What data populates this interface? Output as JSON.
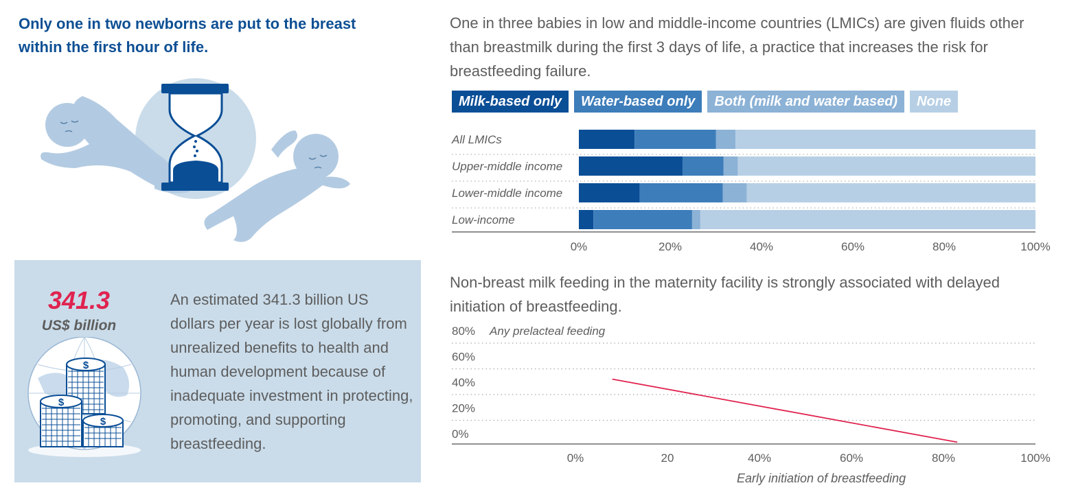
{
  "headline": "Only one in two newborns are put to the breast within the first hour of life.",
  "money": {
    "value": "341.3",
    "unit": "US$ billion",
    "text": "An estimated 341.3 billion US dollars per year is lost globally from unrealized benefits to health and human development because of inadequate investment in protecting, promoting, and supporting breastfeeding.",
    "dollar_sign": "$"
  },
  "intro1": "One in three babies in low and middle-income countries (LMICs) are given fluids other than breastmilk during the first 3 days of life, a practice that increases the risk for breastfeeding failure.",
  "intro2": "Non-breast milk feeding in the maternity facility is strongly associated with delayed initiation of breastfeeding.",
  "colors": {
    "navy": "#0a4e96",
    "mid_blue": "#3d7dba",
    "light_blue": "#8cb2d6",
    "pale_blue": "#b6cfe5",
    "red": "#e0234f",
    "heading_blue": "#0d4f93",
    "box_bg": "#cadcea"
  },
  "chart_data": [
    {
      "type": "bar",
      "orientation": "horizontal",
      "stacked": true,
      "title": "",
      "categories": [
        "All LMICs",
        "Upper-middle income",
        "Lower-middle income",
        "Low-income"
      ],
      "series": [
        {
          "name": "Milk-based only",
          "color": "#0a4e96",
          "values": [
            12.2,
            22.7,
            13.3,
            3.2
          ]
        },
        {
          "name": "Water-based only",
          "color": "#3d7dba",
          "values": [
            17.8,
            9.0,
            18.2,
            21.6
          ]
        },
        {
          "name": "Both (milk and water based)",
          "color": "#8cb2d6",
          "values": [
            4.3,
            3.1,
            5.3,
            1.8
          ]
        },
        {
          "name": "None",
          "color": "#b6cfe5",
          "values": [
            65.7,
            65.2,
            63.2,
            73.4
          ]
        }
      ],
      "xlim": [
        0,
        100
      ],
      "xticks": [
        "0%",
        "20%",
        "40%",
        "60%",
        "80%",
        "100%"
      ],
      "legend_position": "top"
    },
    {
      "type": "line",
      "title": "",
      "annotation": "Any prelacteal feeding",
      "xlabel": "Early initiation of breastfeeding",
      "ylabel": "",
      "xlim": [
        0,
        100
      ],
      "ylim": [
        0,
        80
      ],
      "xticks": [
        "0%",
        "20",
        "40%",
        "60%",
        "80%",
        "100%"
      ],
      "yticks": [
        "0%",
        "20%",
        "40%",
        "60%",
        "80%"
      ],
      "grid": true,
      "series": [
        {
          "name": "Any prelacteal feeding",
          "color": "#e0234f",
          "x": [
            8,
            83
          ],
          "y": [
            52,
            3
          ]
        }
      ]
    }
  ]
}
